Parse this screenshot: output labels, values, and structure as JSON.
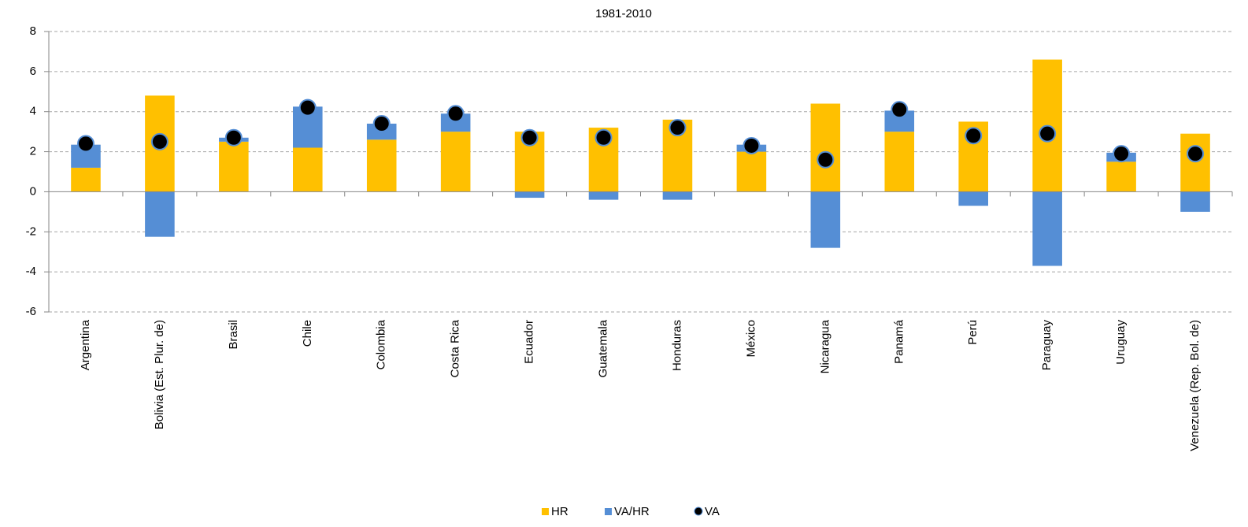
{
  "chart_data": {
    "type": "bar",
    "stacked": true,
    "title": "1981-2010",
    "categories": [
      "Argentina",
      "Bolivia (Est. Plur. de)",
      "Brasil",
      "Chile",
      "Colombia",
      "Costa Rica",
      "Ecuador",
      "Guatemala",
      "Honduras",
      "México",
      "Nicaragua",
      "Panamá",
      "Perú",
      "Paraguay",
      "Uruguay",
      "Venezuela (Rep. Bol. de)"
    ],
    "series": [
      {
        "name": "HR",
        "type": "bar",
        "color": "#ffc000",
        "values": [
          1.2,
          4.8,
          2.5,
          2.2,
          2.6,
          3.0,
          3.0,
          3.2,
          3.6,
          2.0,
          4.4,
          3.0,
          3.5,
          6.6,
          1.5,
          2.9
        ]
      },
      {
        "name": "VA/HR",
        "type": "bar",
        "color": "#558ed5",
        "values": [
          1.15,
          -2.25,
          0.2,
          2.05,
          0.8,
          0.9,
          -0.3,
          -0.4,
          -0.4,
          0.35,
          -2.8,
          1.05,
          -0.7,
          -3.7,
          0.45,
          -1.0
        ]
      },
      {
        "name": "VA",
        "type": "scatter",
        "color": "#000000",
        "values": [
          2.4,
          2.5,
          2.7,
          4.2,
          3.4,
          3.9,
          2.7,
          2.7,
          3.2,
          2.3,
          1.6,
          4.1,
          2.8,
          2.9,
          1.9,
          1.9
        ]
      }
    ],
    "ylim": [
      -6,
      8
    ],
    "yticks": [
      -6,
      -4,
      -2,
      0,
      2,
      4,
      6,
      8
    ],
    "grid": true,
    "legend": "bottom"
  }
}
